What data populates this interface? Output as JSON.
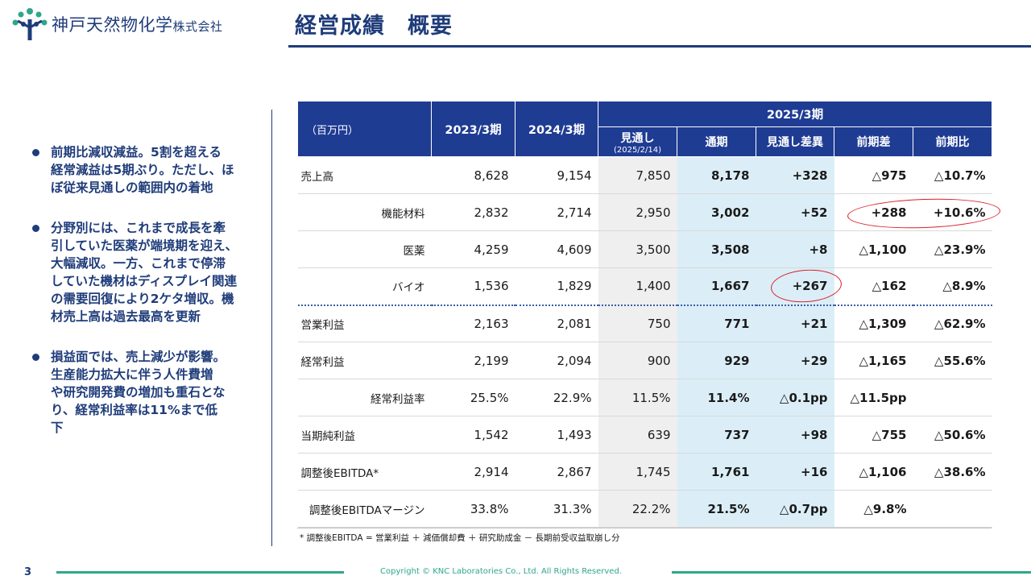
{
  "header": {
    "company": "神戸天然物化学",
    "company_suffix": "株式会社",
    "title": "経営成績　概要"
  },
  "bullets": [
    "前期比減収減益。5割を超える\n経常減益は5期ぶり。ただし、ほ\nぼ従来見通しの範囲内の着地",
    "分野別には、これまで成長を牽\n引していた医薬が端境期を迎え、\n大幅減収。一方、これまで停滞\nしていた機材はディスプレイ関連\nの需要回復により2ケタ増収。機\n材売上高は過去最高を更新",
    "損益面では、売上減少が影響。\n生産能力拡大に伴う人件費増\nや研究開発費の増加も重石とな\nり、経常利益率は11%まで低\n下"
  ],
  "table": {
    "unit": "（百万円）",
    "year_2023": "2023/3期",
    "year_2024": "2024/3期",
    "year_2025": "2025/3期",
    "sub_headers": {
      "forecast": "見通し",
      "forecast_date": "(2025/2/14)",
      "full_year": "通期",
      "forecast_diff": "見通し差異",
      "yoy_diff": "前期差",
      "yoy_ratio": "前期比"
    },
    "rows": [
      {
        "label": "売上高",
        "sub": false,
        "v": [
          "8,628",
          "9,154",
          "7,850",
          "8,178",
          "+328",
          "△975",
          "△10.7%"
        ]
      },
      {
        "label": "機能材料",
        "sub": true,
        "v": [
          "2,832",
          "2,714",
          "2,950",
          "3,002",
          "+52",
          "+288",
          "+10.6%"
        ]
      },
      {
        "label": "医薬",
        "sub": true,
        "v": [
          "4,259",
          "4,609",
          "3,500",
          "3,508",
          "+8",
          "△1,100",
          "△23.9%"
        ]
      },
      {
        "label": "バイオ",
        "sub": true,
        "v": [
          "1,536",
          "1,829",
          "1,400",
          "1,667",
          "+267",
          "△162",
          "△8.9%"
        ]
      },
      {
        "label": "営業利益",
        "sub": false,
        "v": [
          "2,163",
          "2,081",
          "750",
          "771",
          "+21",
          "△1,309",
          "△62.9%"
        ]
      },
      {
        "label": "経常利益",
        "sub": false,
        "v": [
          "2,199",
          "2,094",
          "900",
          "929",
          "+29",
          "△1,165",
          "△55.6%"
        ]
      },
      {
        "label": "経常利益率",
        "sub": true,
        "v": [
          "25.5%",
          "22.9%",
          "11.5%",
          "11.4%",
          "△0.1pp",
          "△11.5pp",
          ""
        ]
      },
      {
        "label": "当期純利益",
        "sub": false,
        "v": [
          "1,542",
          "1,493",
          "639",
          "737",
          "+98",
          "△755",
          "△50.6%"
        ]
      },
      {
        "label": "調整後EBITDA*",
        "sub": false,
        "v": [
          "2,914",
          "2,867",
          "1,745",
          "1,761",
          "+16",
          "△1,106",
          "△38.6%"
        ]
      },
      {
        "label": "調整後EBITDAマージン",
        "sub": true,
        "v": [
          "33.8%",
          "31.3%",
          "22.2%",
          "21.5%",
          "△0.7pp",
          "△9.8%",
          ""
        ]
      }
    ],
    "footnote": "* 調整後EBITDA = 営業利益 ＋ 減価償却費 ＋ 研究助成金 － 長期前受収益取崩し分"
  },
  "footer": {
    "page": "3",
    "copyright": "Copyright © KNC Laboratories Co., Ltd. All Rights Reserved."
  },
  "colors": {
    "brand_navy": "#1f3c7a",
    "table_header": "#1f3c93",
    "accent_green": "#2ea78a",
    "highlight_red": "#d81e2b"
  }
}
